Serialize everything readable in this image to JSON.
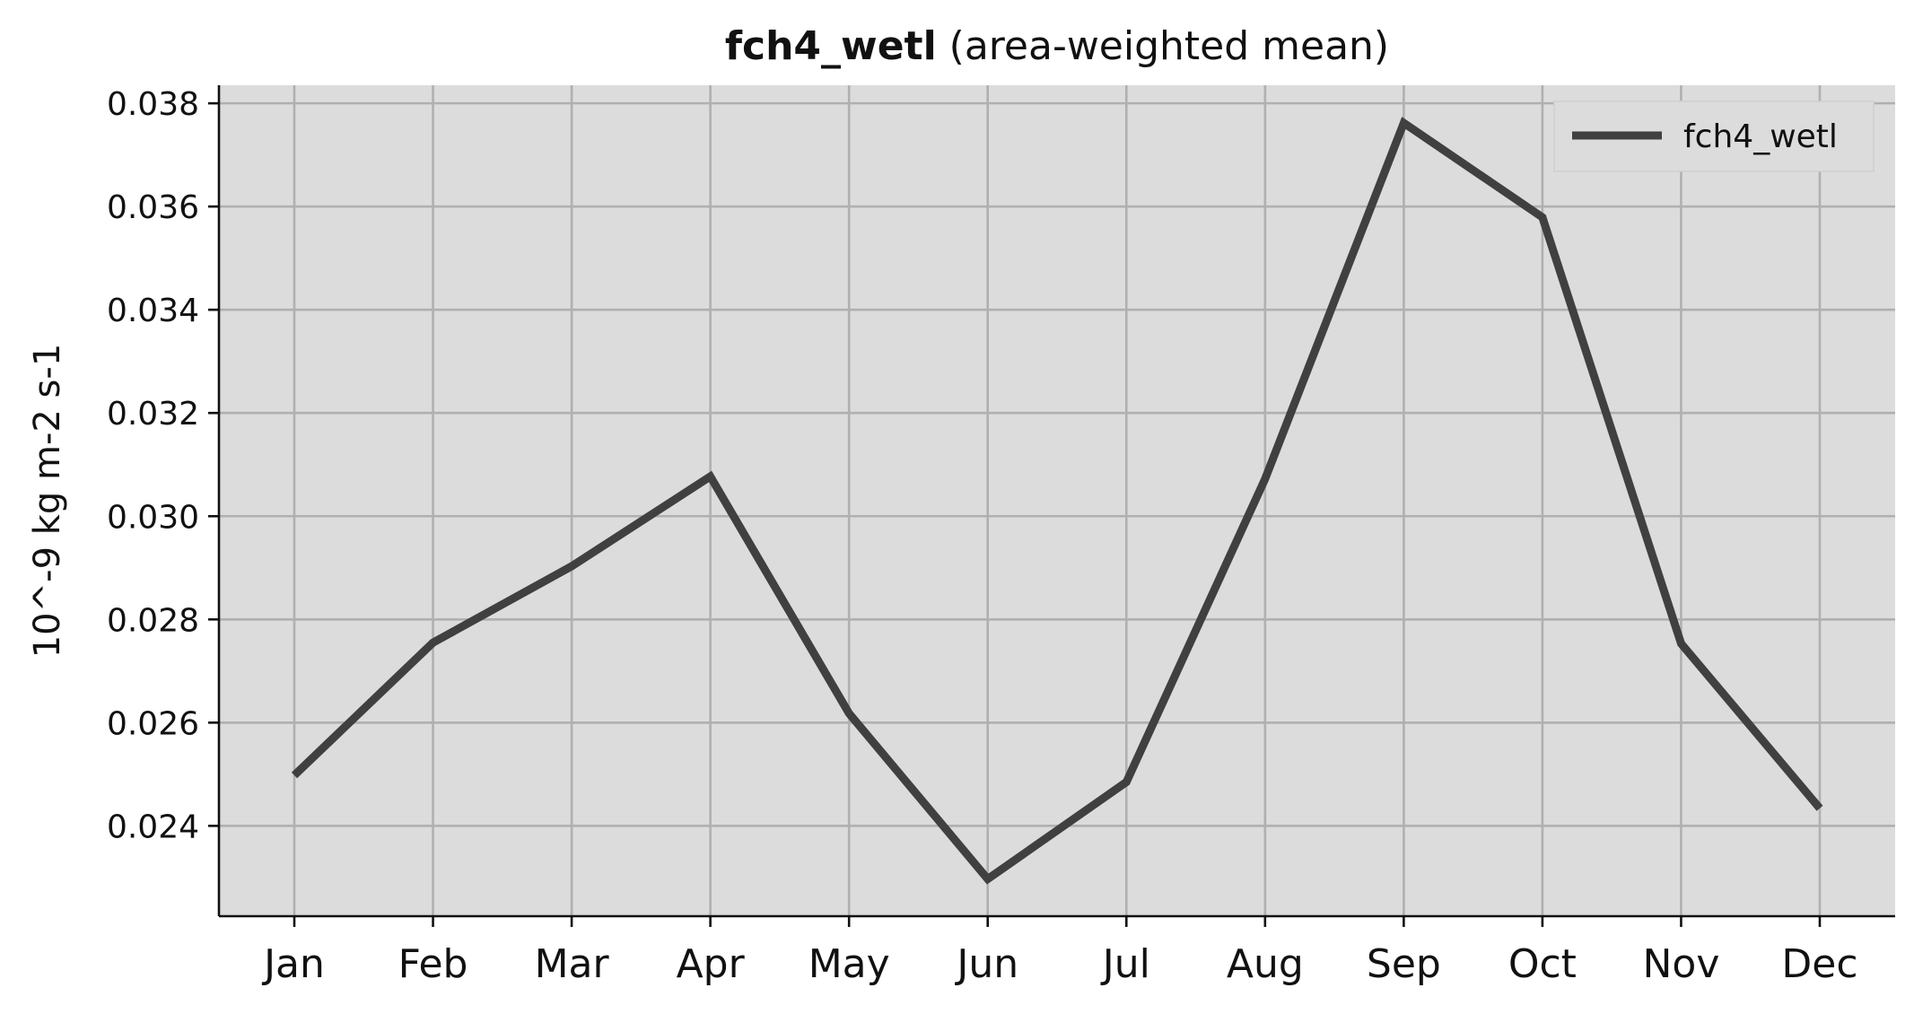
{
  "colors": {
    "plot_background": "#dcdcdc",
    "series": "#404040",
    "grid": "#b0b0b0",
    "axis": "#111111"
  },
  "chart_data": {
    "type": "line",
    "title": "fch4_wetl",
    "subtitle": "(area-weighted mean)",
    "xlabel": "",
    "ylabel": "10^-9 kg m-2 s-1",
    "categories": [
      "Jan",
      "Feb",
      "Mar",
      "Apr",
      "May",
      "Jun",
      "Jul",
      "Aug",
      "Sep",
      "Oct",
      "Nov",
      "Dec"
    ],
    "series": [
      {
        "name": "fch4_wetl",
        "values": [
          0.02498,
          0.02755,
          0.02903,
          0.03077,
          0.02618,
          0.02297,
          0.02485,
          0.03072,
          0.03762,
          0.03579,
          0.02753,
          0.02434
        ]
      }
    ],
    "ylim": [
      0.02225,
      0.03835
    ],
    "yticks": [
      0.024,
      0.026,
      0.028,
      0.03,
      0.032,
      0.034,
      0.036,
      0.038
    ],
    "ytick_labels": [
      "0.024",
      "0.026",
      "0.028",
      "0.030",
      "0.032",
      "0.034",
      "0.036",
      "0.038"
    ],
    "grid": true,
    "legend": {
      "location": "top-right",
      "entries": [
        "fch4_wetl"
      ]
    }
  }
}
